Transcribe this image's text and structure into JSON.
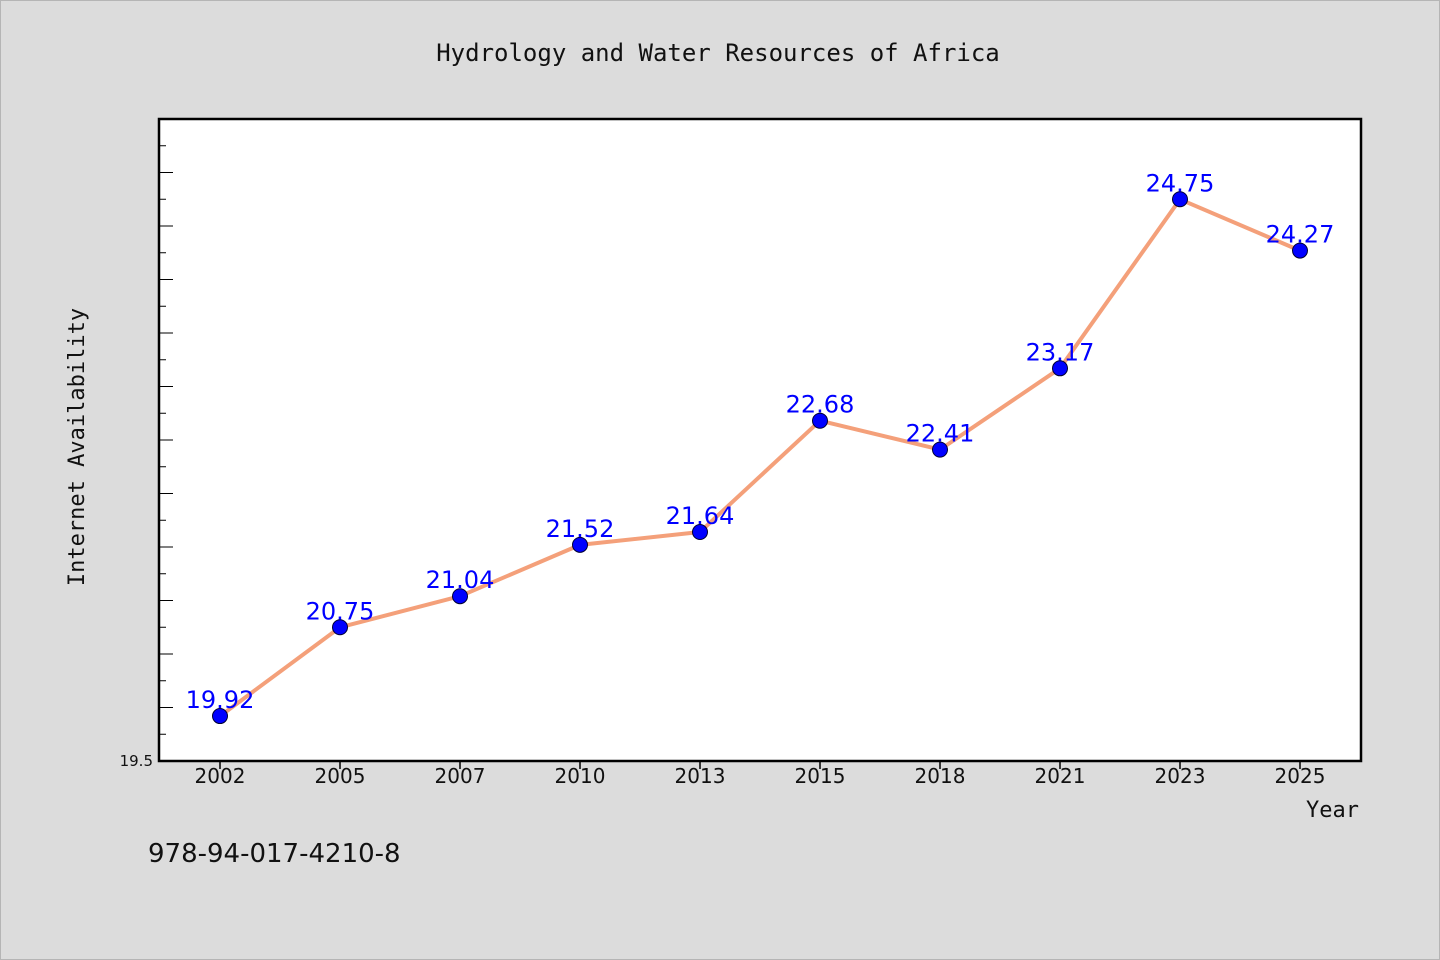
{
  "chart_data": {
    "type": "line",
    "title": "Hydrology and Water Resources of Africa",
    "xlabel": "Year",
    "ylabel": "Internet Availability",
    "categories": [
      "2002",
      "2005",
      "2007",
      "2010",
      "2013",
      "2015",
      "2018",
      "2021",
      "2023",
      "2025"
    ],
    "series": [
      {
        "values": [
          19.92,
          20.75,
          21.04,
          21.52,
          21.64,
          22.68,
          22.41,
          23.17,
          24.75,
          24.27
        ],
        "color": "#f4a07a",
        "marker_color": "#0000ff"
      }
    ],
    "ylim": [
      19.5,
      25.5
    ],
    "y_min_label": "19.5",
    "grid": false,
    "legend": "none",
    "data_label_color": "#0000ff"
  },
  "footer": {
    "isbn": "978-94-017-4210-8"
  }
}
